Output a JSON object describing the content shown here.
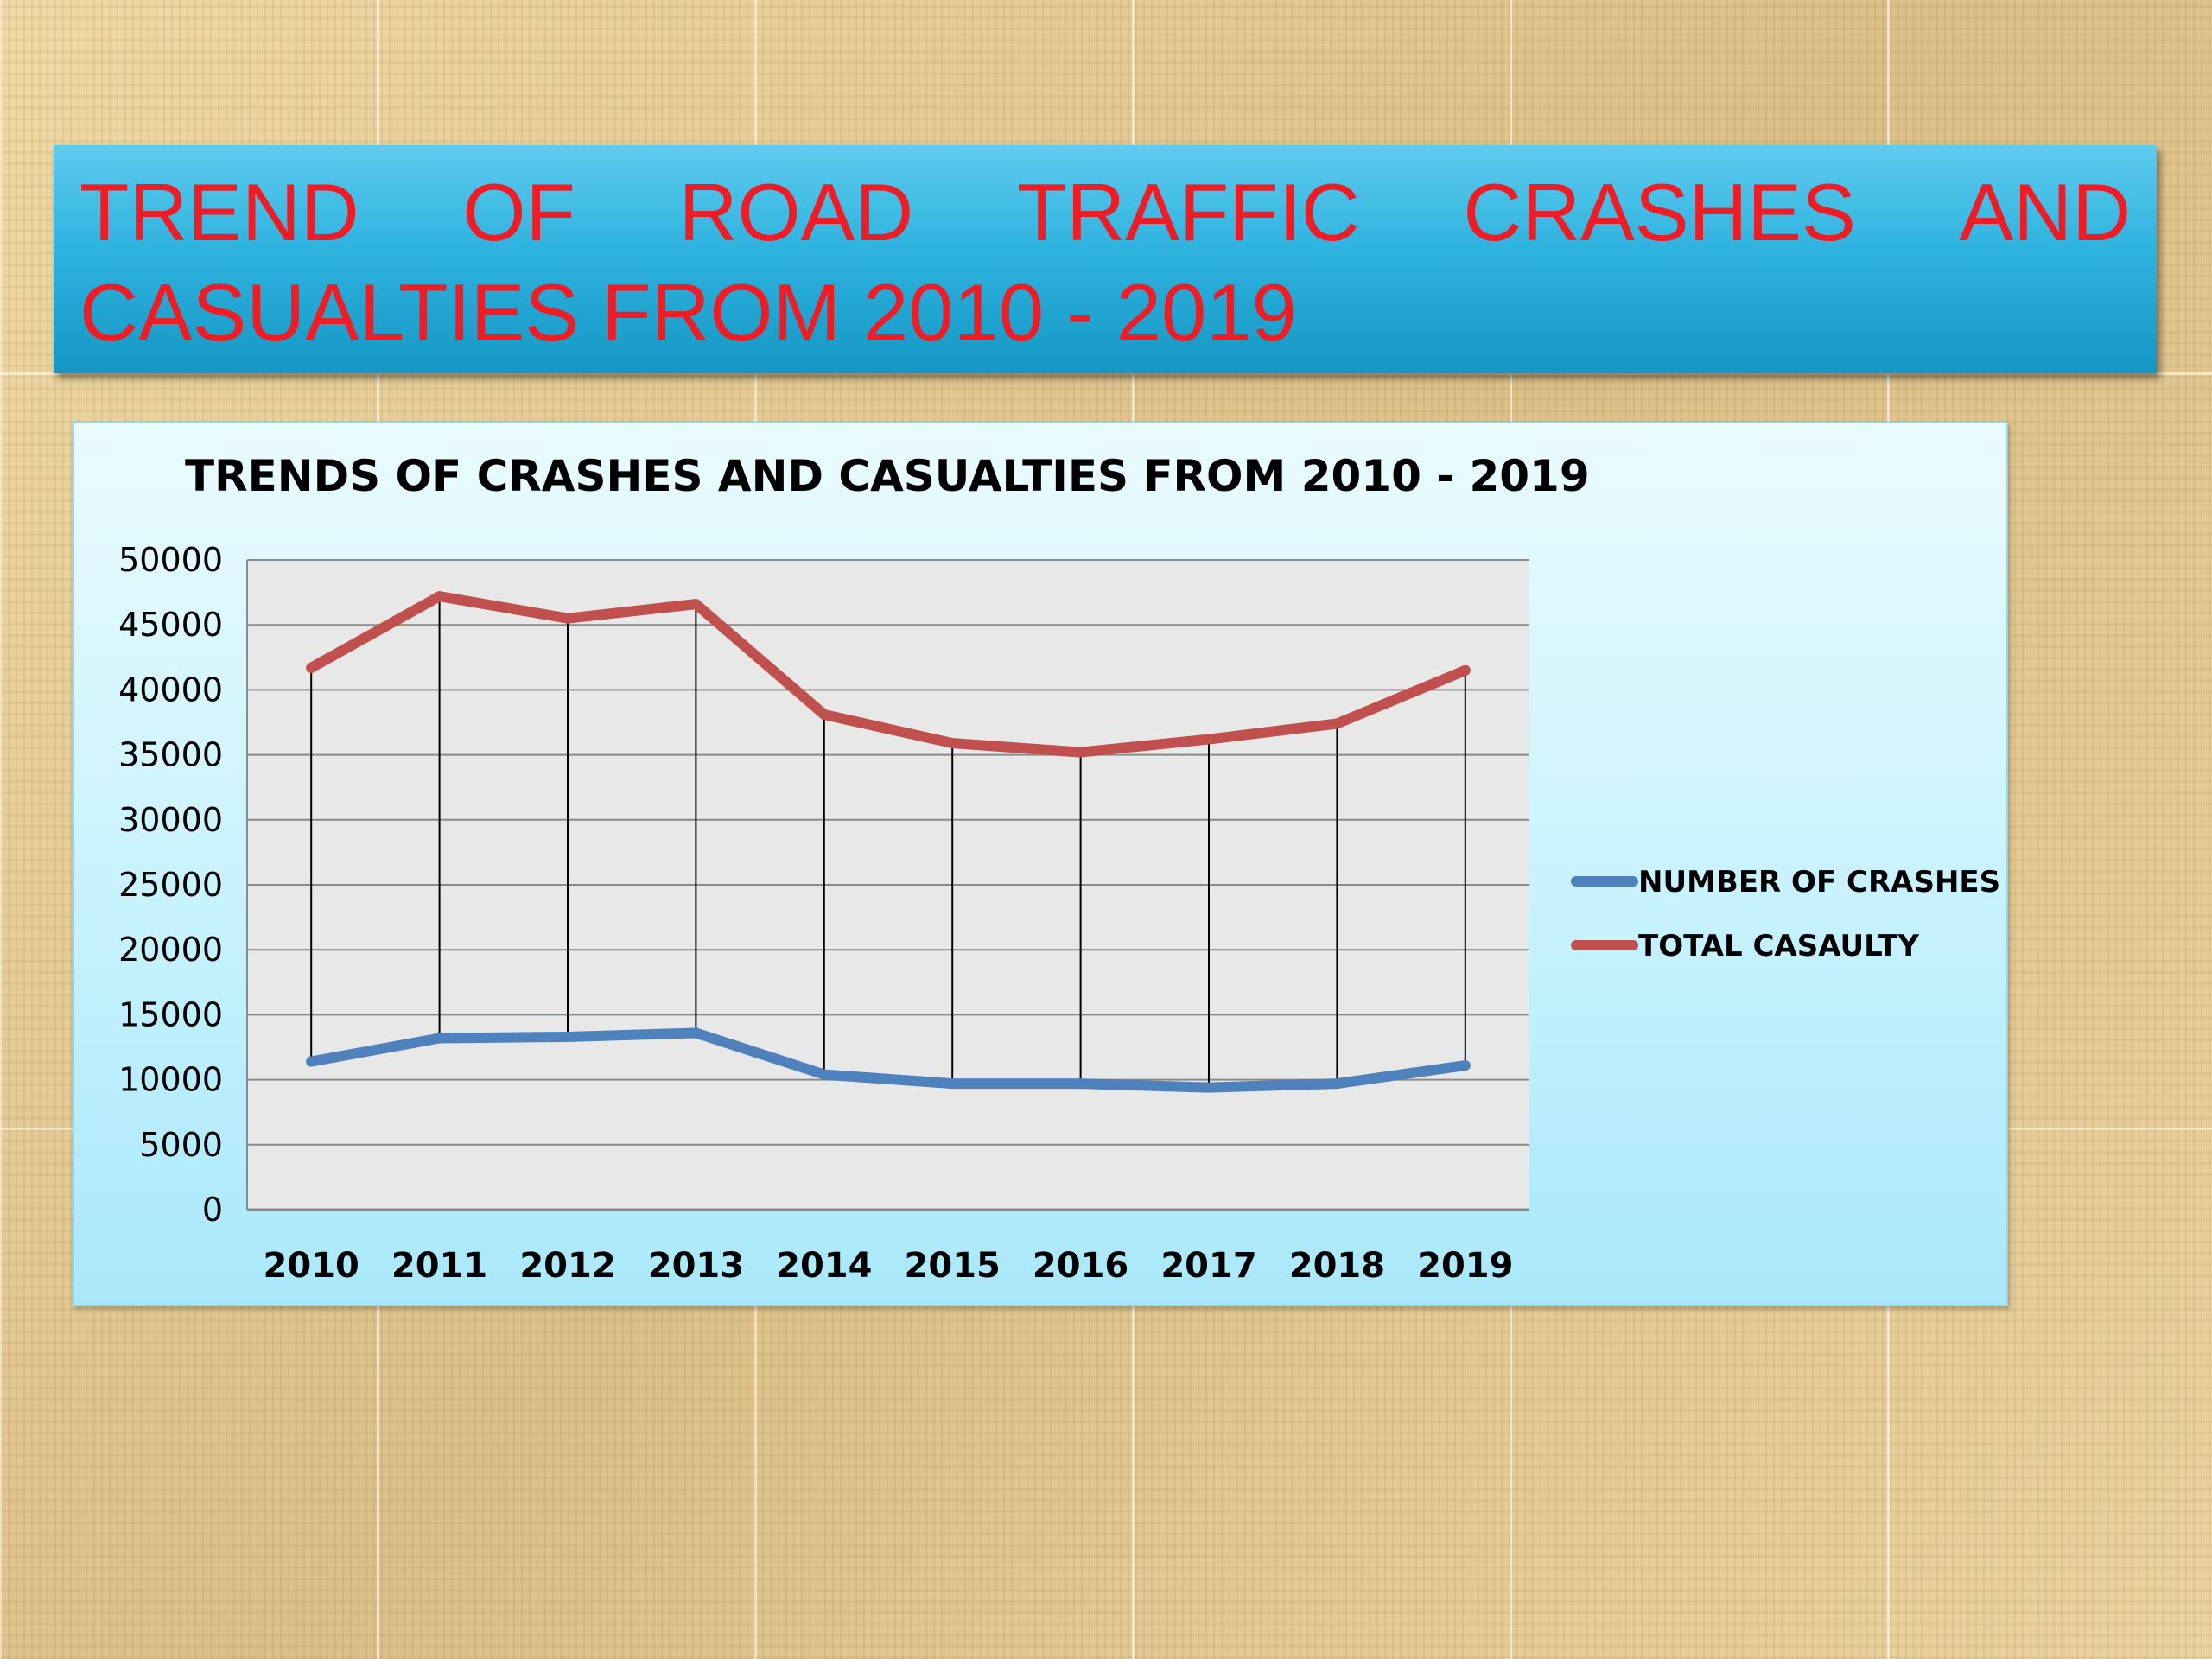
{
  "slide": {
    "title_line1_words": [
      "TREND",
      "OF",
      "ROAD",
      "TRAFFIC",
      "CRASHES",
      "AND"
    ],
    "title_line2": "CASUALTIES FROM 2010 - 2019",
    "title_color": "#ee1c25",
    "banner_color": "#2fb3df"
  },
  "chart_data": {
    "type": "line",
    "title": "TRENDS OF CRASHES AND CASUALTIES FROM 2010 - 2019",
    "xlabel": "",
    "ylabel": "",
    "categories": [
      "2010",
      "2011",
      "2012",
      "2013",
      "2014",
      "2015",
      "2016",
      "2017",
      "2018",
      "2019"
    ],
    "ylim": [
      0,
      50000
    ],
    "yticks": [
      "0",
      "5000",
      "10000",
      "15000",
      "20000",
      "25000",
      "30000",
      "35000",
      "40000",
      "45000",
      "50000"
    ],
    "series": [
      {
        "name": "NUMBER OF CRASHES",
        "color": "#4f81bd",
        "values": [
          11400,
          13200,
          13300,
          13600,
          10400,
          9700,
          9700,
          9400,
          9700,
          11100
        ]
      },
      {
        "name": "TOTAL CASAULTY",
        "color": "#c0504d",
        "values": [
          41700,
          47200,
          45500,
          46600,
          38100,
          35900,
          35200,
          36200,
          37400,
          41500
        ]
      }
    ],
    "drop_lines": true,
    "grid": true,
    "legend_position": "right"
  }
}
